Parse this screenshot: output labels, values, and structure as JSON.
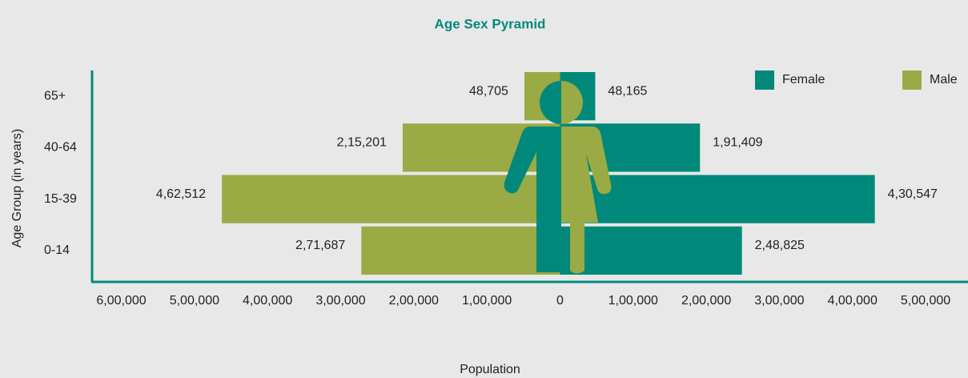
{
  "chart_data": {
    "type": "pyramid",
    "title": "Age Sex Pyramid",
    "xlabel": "Population",
    "ylabel": "Age Group (in years)",
    "categories": [
      "65+",
      "40-64",
      "15-39",
      "0-14"
    ],
    "series": [
      {
        "name": "Male",
        "side": "left",
        "color": "#9aaa45",
        "values": [
          48705,
          215201,
          462512,
          271687
        ],
        "value_labels": [
          "48,705",
          "2,15,201",
          "4,62,512",
          "2,71,687"
        ]
      },
      {
        "name": "Female",
        "side": "right",
        "color": "#00897a",
        "values": [
          48165,
          191409,
          430547,
          248825
        ],
        "value_labels": [
          "48,165",
          "1,91,409",
          "4,30,547",
          "2,48,825"
        ]
      }
    ],
    "xlim": [
      -640000,
      558000
    ],
    "xticks": [
      {
        "value": -600000,
        "label": "6,00,000"
      },
      {
        "value": -500000,
        "label": "5,00,000"
      },
      {
        "value": -400000,
        "label": "4,00,000"
      },
      {
        "value": -300000,
        "label": "3,00,000"
      },
      {
        "value": -200000,
        "label": "2,00,000"
      },
      {
        "value": -100000,
        "label": "1,00,000"
      },
      0,
      {
        "value": 100000,
        "label": "1,00,000"
      },
      {
        "value": 200000,
        "label": "2,00,000"
      },
      {
        "value": 300000,
        "label": "3,00,000"
      },
      {
        "value": 400000,
        "label": "4,00,000"
      },
      {
        "value": 500000,
        "label": "5,00,000"
      }
    ],
    "legend": "top-right",
    "grid": false
  }
}
